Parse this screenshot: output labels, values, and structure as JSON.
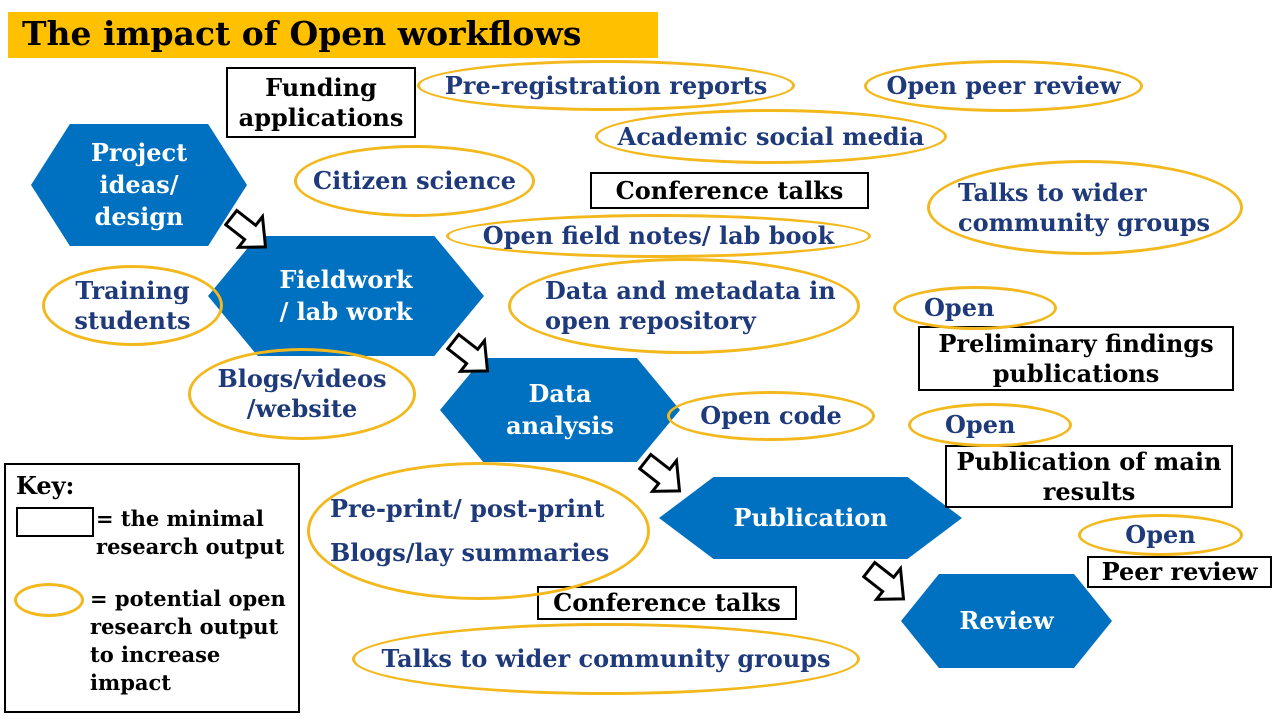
{
  "title": "The impact of Open workflows",
  "stages": {
    "project": "Project ideas/ design",
    "fieldwork": "Fieldwork / lab work",
    "analysis": "Data analysis",
    "publication": "Publication",
    "review": "Review"
  },
  "minimal_outputs": {
    "funding": "Funding applications",
    "conference_top": "Conference talks",
    "preliminary": "Preliminary findings publications",
    "main_results": "Publication of main results",
    "peer_review": "Peer review",
    "conference_bottom": "Conference talks"
  },
  "open_outputs": {
    "prereg": "Pre-registration reports",
    "open_peer_review": "Open peer review",
    "social_media": "Academic social media",
    "citizen_science": "Citizen science",
    "talks_wider_top": "Talks to wider community groups",
    "field_notes": "Open field notes/ lab book",
    "training": "Training students",
    "data_repo": "Data and metadata in open repository",
    "open_1": "Open",
    "blogs_videos": "Blogs/videos /website",
    "open_code": "Open code",
    "open_2": "Open",
    "preprint": "Pre-print/ post-print",
    "lay_summaries": "Blogs/lay summaries",
    "open_3": "Open",
    "talks_wider_bottom": "Talks to wider community groups"
  },
  "key": {
    "title": "Key:",
    "minimal": "= the minimal research output",
    "potential": "= potential open research output to increase impact"
  },
  "colors": {
    "title_bg": "#ffc000",
    "stage_fill": "#0070c0",
    "oval_border": "#f2b81c",
    "oval_text": "#1f3a7a"
  }
}
